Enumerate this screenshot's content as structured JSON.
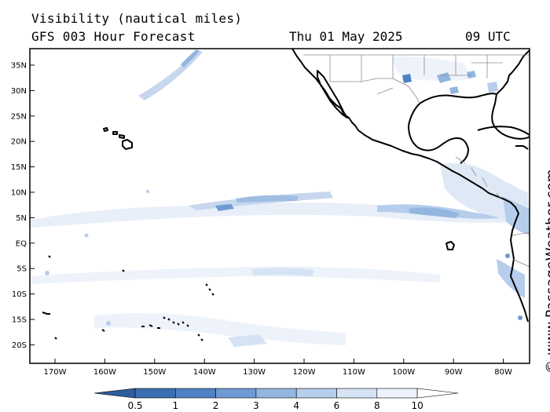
{
  "header": {
    "title": "Visibility (nautical miles)",
    "subtitle": "GFS 003 Hour Forecast",
    "date": "Thu 01 May 2025",
    "time": "09 UTC"
  },
  "credit": "© www.PassageWeather.com",
  "axes": {
    "lat_labels": [
      "35N",
      "30N",
      "25N",
      "20N",
      "15N",
      "10N",
      "5N",
      "EQ",
      "5S",
      "10S",
      "15S",
      "20S"
    ],
    "lon_labels": [
      "170W",
      "160W",
      "150W",
      "140W",
      "130W",
      "120W",
      "110W",
      "100W",
      "90W",
      "80W"
    ]
  },
  "legend": {
    "labels": [
      "0.5",
      "1",
      "2",
      "3",
      "4",
      "6",
      "8",
      "10"
    ],
    "colors": [
      "#3a6fb0",
      "#4f82c3",
      "#6f9bd3",
      "#93b6e0",
      "#b6cdeb",
      "#d5e3f4",
      "#eef3fb",
      "#ffffff"
    ]
  },
  "colors": {
    "land_outline": "#000000",
    "border": "#888888",
    "haze_light": "#dfe9f6",
    "haze_mid": "#b6cdeb",
    "haze_dark": "#6f9bd3"
  }
}
